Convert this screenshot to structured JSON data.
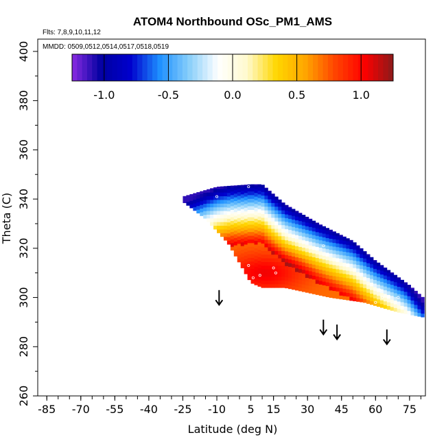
{
  "chart_data": {
    "type": "heatmap",
    "title": "ATOM4 Northbound OSc_PM1_AMS",
    "flights_note": "Flts: 7,8,9,10,11,12",
    "dates_note": "MMDD: 0509,0512,0514,0517,0518,0519",
    "xlabel": "Latitude (deg N)",
    "ylabel": "Theta (C)",
    "xlim": [
      -89,
      82
    ],
    "ylim": [
      260,
      405
    ],
    "xticks": [
      -85,
      -70,
      -55,
      -40,
      -25,
      -10,
      5,
      15,
      30,
      45,
      60,
      75
    ],
    "yticks": [
      260,
      280,
      300,
      320,
      340,
      360,
      380,
      400
    ],
    "colorbar": {
      "range": [
        -1.25,
        1.25
      ],
      "ticks": [
        -1.0,
        -0.5,
        0.0,
        0.5,
        1.0
      ],
      "tick_labels": [
        "-1.0",
        "-0.5",
        "0.0",
        "0.5",
        "1.0"
      ],
      "colors": [
        "#8a2be2",
        "#0000a0",
        "#0000cd",
        "#1e90ff",
        "#87cefa",
        "#ffffff",
        "#fffacd",
        "#ffd700",
        "#ffa500",
        "#ff4500",
        "#ff0000",
        "#8b1a1a"
      ]
    },
    "field": {
      "description": "OSc value by latitude and potential temperature",
      "lat_range": [
        -25,
        81
      ],
      "theta_range": [
        292,
        346
      ],
      "top_edge": [
        [
          -25,
          341
        ],
        [
          -10,
          345
        ],
        [
          5,
          346
        ],
        [
          10,
          346
        ],
        [
          20,
          338
        ],
        [
          35,
          330
        ],
        [
          50,
          323
        ],
        [
          60,
          315
        ],
        [
          75,
          305
        ],
        [
          81,
          300
        ]
      ],
      "bottom_edge": [
        [
          -25,
          339
        ],
        [
          -15,
          332
        ],
        [
          -5,
          322
        ],
        [
          5,
          306
        ],
        [
          10,
          304
        ],
        [
          20,
          304
        ],
        [
          40,
          300
        ],
        [
          55,
          298
        ],
        [
          70,
          294
        ],
        [
          81,
          292
        ]
      ],
      "core_max": {
        "lat": 10,
        "theta": 310,
        "value": 1.0
      }
    },
    "sample_points": [
      {
        "lat": 4,
        "theta": 345
      },
      {
        "lat": -10,
        "theta": 341
      },
      {
        "lat": 4,
        "theta": 313
      },
      {
        "lat": 15,
        "theta": 312
      },
      {
        "lat": 16,
        "theta": 310
      },
      {
        "lat": 6,
        "theta": 308
      },
      {
        "lat": 9,
        "theta": 309
      },
      {
        "lat": 4,
        "theta": 306
      },
      {
        "lat": 62,
        "theta": 303
      },
      {
        "lat": 63,
        "theta": 300
      },
      {
        "lat": 70,
        "theta": 300
      },
      {
        "lat": 60,
        "theta": 298
      },
      {
        "lat": 37,
        "theta": 321
      }
    ],
    "arrows": [
      {
        "lat": -9,
        "theta_start": 303,
        "theta_end": 297
      },
      {
        "lat": 37,
        "theta_start": 291,
        "theta_end": 285
      },
      {
        "lat": 43,
        "theta_start": 289,
        "theta_end": 283
      },
      {
        "lat": 65,
        "theta_start": 287,
        "theta_end": 281
      }
    ]
  }
}
